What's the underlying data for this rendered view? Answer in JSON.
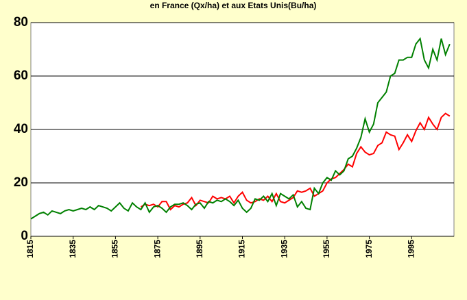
{
  "chart_data": {
    "type": "line",
    "title": "en France (Qx/ha) et aux Etats Unis(Bu/ha)",
    "x": [
      1815,
      1817,
      1819,
      1821,
      1823,
      1825,
      1827,
      1829,
      1831,
      1833,
      1835,
      1837,
      1839,
      1841,
      1843,
      1845,
      1847,
      1849,
      1851,
      1853,
      1855,
      1857,
      1859,
      1861,
      1863,
      1865,
      1867,
      1869,
      1871,
      1873,
      1875,
      1877,
      1879,
      1881,
      1883,
      1885,
      1887,
      1889,
      1891,
      1893,
      1895,
      1897,
      1899,
      1901,
      1903,
      1905,
      1907,
      1909,
      1911,
      1913,
      1915,
      1917,
      1919,
      1921,
      1923,
      1925,
      1927,
      1929,
      1931,
      1933,
      1935,
      1937,
      1939,
      1941,
      1943,
      1945,
      1947,
      1949,
      1951,
      1953,
      1955,
      1957,
      1959,
      1961,
      1963,
      1965,
      1967,
      1969,
      1971,
      1973,
      1975,
      1977,
      1979,
      1981,
      1983,
      1985,
      1987,
      1989,
      1991,
      1993,
      1995,
      1997,
      1999,
      2001,
      2003,
      2005,
      2007,
      2009,
      2011,
      2013
    ],
    "series": [
      {
        "color": "#008000",
        "values": [
          6.5,
          7.5,
          8.5,
          9,
          8,
          9.5,
          9,
          8.5,
          9.5,
          10,
          9.5,
          10,
          10.5,
          10,
          11,
          10,
          11.5,
          11,
          10.5,
          9.5,
          11,
          12.5,
          10.5,
          9.5,
          12.5,
          11,
          10,
          12.5,
          9,
          11,
          11.5,
          10.5,
          9,
          11,
          12,
          12,
          12.5,
          11.5,
          10,
          12,
          12.5,
          10.5,
          13,
          12.5,
          13.5,
          13,
          14,
          13,
          11.5,
          13.5,
          10.5,
          9,
          10.5,
          14,
          13.5,
          15,
          13,
          16,
          11.5,
          16,
          15,
          14,
          15.5,
          11,
          13,
          10.5,
          10,
          18,
          16,
          20,
          22,
          21,
          24.5,
          23,
          24.5,
          29,
          30,
          33,
          37,
          44,
          39,
          42,
          50,
          52,
          54,
          60,
          61,
          66,
          66,
          67,
          67,
          72,
          74,
          66,
          63,
          70,
          66,
          74,
          68,
          72
        ]
      },
      {
        "color": "#ff0000",
        "values": [
          null,
          null,
          null,
          null,
          null,
          null,
          null,
          null,
          null,
          null,
          null,
          null,
          null,
          null,
          null,
          null,
          null,
          null,
          null,
          null,
          null,
          null,
          null,
          null,
          null,
          null,
          11,
          12,
          11.5,
          12,
          11,
          13,
          13,
          10,
          11.5,
          11,
          12,
          12.5,
          14.5,
          11.5,
          13.5,
          13,
          12.5,
          15,
          14,
          14.5,
          14,
          15,
          12.5,
          15,
          16.5,
          13.5,
          12.5,
          13,
          14,
          13.5,
          15,
          13,
          16,
          13,
          12.5,
          13.5,
          14.5,
          17,
          16.5,
          17,
          18,
          15,
          16,
          17,
          20,
          21.5,
          22,
          23.5,
          25,
          27,
          26,
          31,
          33.5,
          31.5,
          30.5,
          31,
          34,
          35,
          39,
          38,
          37.5,
          32.5,
          35,
          38,
          35.5,
          39.5,
          42.5,
          40,
          44.5,
          42,
          40,
          44.5,
          46,
          45
        ]
      }
    ],
    "xlim": [
      1815,
      2015
    ],
    "xticks": [
      1815,
      1835,
      1855,
      1875,
      1895,
      1915,
      1935,
      1955,
      1975,
      1995
    ],
    "ylim": [
      0,
      80
    ],
    "yticks": [
      0,
      20,
      40,
      60,
      80
    ],
    "grid": true
  }
}
